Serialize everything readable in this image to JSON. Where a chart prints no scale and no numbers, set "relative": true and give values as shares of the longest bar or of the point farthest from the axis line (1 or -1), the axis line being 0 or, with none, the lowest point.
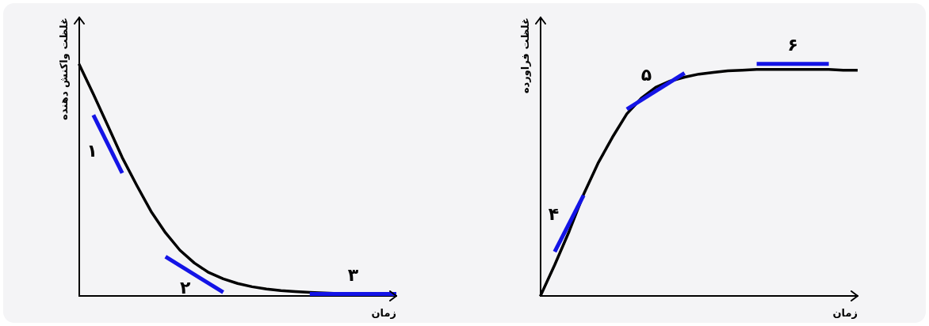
{
  "chart_data": [
    {
      "type": "line",
      "relative": true,
      "xlabel": "زمان",
      "ylabel": "غلظت واکنش دهنده",
      "tick_labels": false,
      "grid": false,
      "legend": false,
      "marker": "none",
      "categories": [
        null,
        null,
        null,
        null,
        null,
        null,
        null,
        null,
        null,
        null,
        null,
        null,
        null,
        null,
        null,
        null,
        null,
        null,
        null,
        null,
        null,
        null,
        null
      ],
      "series": [
        {
          "color": "#000000",
          "values": [
            1.0,
            0.87,
            0.734,
            0.597,
            0.478,
            0.365,
            0.273,
            0.198,
            0.143,
            0.102,
            0.075,
            0.055,
            0.041,
            0.031,
            0.024,
            0.02,
            0.017,
            0.014,
            0.012,
            0.01,
            0.01,
            0.01,
            0.01
          ]
        },
        {
          "name": "۱",
          "color": "#1414e6",
          "values": [
            null,
            0.78,
            null,
            0.53,
            null,
            null,
            null,
            null,
            null,
            null,
            null,
            null,
            null,
            null,
            null,
            null,
            null,
            null,
            null,
            null,
            null,
            null,
            null
          ]
        },
        {
          "name": "۲",
          "color": "#1414e6",
          "values": [
            null,
            null,
            null,
            null,
            null,
            null,
            0.17,
            null,
            null,
            null,
            0.017,
            null,
            null,
            null,
            null,
            null,
            null,
            null,
            null,
            null,
            null,
            null,
            null
          ]
        },
        {
          "name": "۳",
          "color": "#1414e6",
          "values": [
            null,
            null,
            null,
            null,
            null,
            null,
            null,
            null,
            null,
            null,
            null,
            null,
            null,
            null,
            null,
            null,
            0.01,
            null,
            null,
            null,
            null,
            null,
            0.01
          ]
        }
      ]
    },
    {
      "type": "line",
      "relative": true,
      "xlabel": "زمان",
      "ylabel": "غلظت فراورده",
      "tick_labels": false,
      "grid": false,
      "legend": false,
      "marker": "none",
      "categories": [
        null,
        null,
        null,
        null,
        null,
        null,
        null,
        null,
        null,
        null,
        null,
        null,
        null,
        null,
        null,
        null,
        null,
        null,
        null,
        null,
        null,
        null,
        null
      ],
      "series": [
        {
          "color": "#000000",
          "values": [
            0,
            0.135,
            0.279,
            0.438,
            0.572,
            0.684,
            0.785,
            0.852,
            0.899,
            0.926,
            0.943,
            0.956,
            0.963,
            0.97,
            0.973,
            0.976,
            0.976,
            0.976,
            0.976,
            0.976,
            0.976,
            0.973,
            0.973
          ]
        },
        {
          "name": "۴",
          "color": "#1414e6",
          "values": [
            null,
            0.192,
            null,
            0.434,
            null,
            null,
            null,
            null,
            null,
            null,
            null,
            null,
            null,
            null,
            null,
            null,
            null,
            null,
            null,
            null,
            null,
            null,
            null
          ]
        },
        {
          "name": "۵",
          "color": "#1414e6",
          "values": [
            null,
            null,
            null,
            null,
            null,
            null,
            0.805,
            null,
            null,
            null,
            0.96,
            null,
            null,
            null,
            null,
            null,
            null,
            null,
            null,
            null,
            null,
            null,
            null
          ]
        },
        {
          "name": "۶",
          "color": "#1414e6",
          "values": [
            null,
            null,
            null,
            null,
            null,
            null,
            null,
            null,
            null,
            null,
            null,
            null,
            null,
            null,
            null,
            1.0,
            null,
            null,
            null,
            null,
            1.0,
            null,
            null
          ]
        }
      ]
    }
  ]
}
